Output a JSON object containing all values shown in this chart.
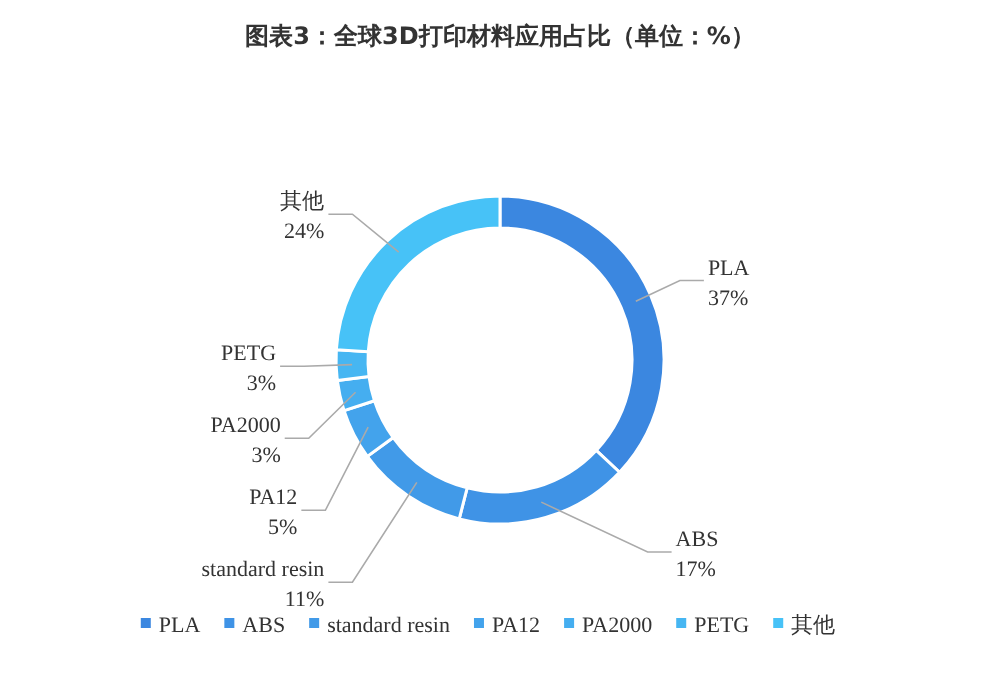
{
  "chart_data": {
    "type": "donut",
    "title": "图表3：全球3D打印材料应用占比（单位：%）",
    "categories": [
      "PLA",
      "ABS",
      "standard resin",
      "PA12",
      "PA2000",
      "PETG",
      "其他"
    ],
    "values": [
      37,
      17,
      11,
      5,
      3,
      3,
      24
    ],
    "value_labels": [
      "37%",
      "17%",
      "11%",
      "5%",
      "3%",
      "3%",
      "24%"
    ],
    "colors": [
      "#3b87e0",
      "#3f93e6",
      "#419ae8",
      "#43a3ec",
      "#45aef0",
      "#46b6f2",
      "#47c2f7"
    ],
    "legend": "bottom"
  }
}
